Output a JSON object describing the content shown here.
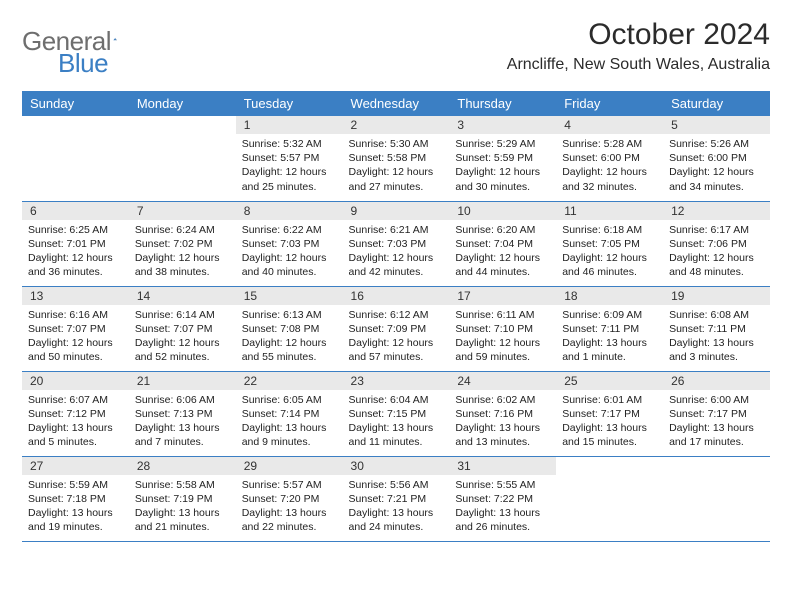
{
  "logo": {
    "text1": "General",
    "text2": "Blue"
  },
  "title": "October 2024",
  "location": "Arncliffe, New South Wales, Australia",
  "colors": {
    "header_bg": "#3b7fc4",
    "daynum_bg": "#e9e9e9",
    "border": "#3b7fc4"
  },
  "weekdays": [
    "Sunday",
    "Monday",
    "Tuesday",
    "Wednesday",
    "Thursday",
    "Friday",
    "Saturday"
  ],
  "weeks": [
    [
      null,
      null,
      {
        "n": "1",
        "sr": "5:32 AM",
        "ss": "5:57 PM",
        "dl": "12 hours and 25 minutes."
      },
      {
        "n": "2",
        "sr": "5:30 AM",
        "ss": "5:58 PM",
        "dl": "12 hours and 27 minutes."
      },
      {
        "n": "3",
        "sr": "5:29 AM",
        "ss": "5:59 PM",
        "dl": "12 hours and 30 minutes."
      },
      {
        "n": "4",
        "sr": "5:28 AM",
        "ss": "6:00 PM",
        "dl": "12 hours and 32 minutes."
      },
      {
        "n": "5",
        "sr": "5:26 AM",
        "ss": "6:00 PM",
        "dl": "12 hours and 34 minutes."
      }
    ],
    [
      {
        "n": "6",
        "sr": "6:25 AM",
        "ss": "7:01 PM",
        "dl": "12 hours and 36 minutes."
      },
      {
        "n": "7",
        "sr": "6:24 AM",
        "ss": "7:02 PM",
        "dl": "12 hours and 38 minutes."
      },
      {
        "n": "8",
        "sr": "6:22 AM",
        "ss": "7:03 PM",
        "dl": "12 hours and 40 minutes."
      },
      {
        "n": "9",
        "sr": "6:21 AM",
        "ss": "7:03 PM",
        "dl": "12 hours and 42 minutes."
      },
      {
        "n": "10",
        "sr": "6:20 AM",
        "ss": "7:04 PM",
        "dl": "12 hours and 44 minutes."
      },
      {
        "n": "11",
        "sr": "6:18 AM",
        "ss": "7:05 PM",
        "dl": "12 hours and 46 minutes."
      },
      {
        "n": "12",
        "sr": "6:17 AM",
        "ss": "7:06 PM",
        "dl": "12 hours and 48 minutes."
      }
    ],
    [
      {
        "n": "13",
        "sr": "6:16 AM",
        "ss": "7:07 PM",
        "dl": "12 hours and 50 minutes."
      },
      {
        "n": "14",
        "sr": "6:14 AM",
        "ss": "7:07 PM",
        "dl": "12 hours and 52 minutes."
      },
      {
        "n": "15",
        "sr": "6:13 AM",
        "ss": "7:08 PM",
        "dl": "12 hours and 55 minutes."
      },
      {
        "n": "16",
        "sr": "6:12 AM",
        "ss": "7:09 PM",
        "dl": "12 hours and 57 minutes."
      },
      {
        "n": "17",
        "sr": "6:11 AM",
        "ss": "7:10 PM",
        "dl": "12 hours and 59 minutes."
      },
      {
        "n": "18",
        "sr": "6:09 AM",
        "ss": "7:11 PM",
        "dl": "13 hours and 1 minute."
      },
      {
        "n": "19",
        "sr": "6:08 AM",
        "ss": "7:11 PM",
        "dl": "13 hours and 3 minutes."
      }
    ],
    [
      {
        "n": "20",
        "sr": "6:07 AM",
        "ss": "7:12 PM",
        "dl": "13 hours and 5 minutes."
      },
      {
        "n": "21",
        "sr": "6:06 AM",
        "ss": "7:13 PM",
        "dl": "13 hours and 7 minutes."
      },
      {
        "n": "22",
        "sr": "6:05 AM",
        "ss": "7:14 PM",
        "dl": "13 hours and 9 minutes."
      },
      {
        "n": "23",
        "sr": "6:04 AM",
        "ss": "7:15 PM",
        "dl": "13 hours and 11 minutes."
      },
      {
        "n": "24",
        "sr": "6:02 AM",
        "ss": "7:16 PM",
        "dl": "13 hours and 13 minutes."
      },
      {
        "n": "25",
        "sr": "6:01 AM",
        "ss": "7:17 PM",
        "dl": "13 hours and 15 minutes."
      },
      {
        "n": "26",
        "sr": "6:00 AM",
        "ss": "7:17 PM",
        "dl": "13 hours and 17 minutes."
      }
    ],
    [
      {
        "n": "27",
        "sr": "5:59 AM",
        "ss": "7:18 PM",
        "dl": "13 hours and 19 minutes."
      },
      {
        "n": "28",
        "sr": "5:58 AM",
        "ss": "7:19 PM",
        "dl": "13 hours and 21 minutes."
      },
      {
        "n": "29",
        "sr": "5:57 AM",
        "ss": "7:20 PM",
        "dl": "13 hours and 22 minutes."
      },
      {
        "n": "30",
        "sr": "5:56 AM",
        "ss": "7:21 PM",
        "dl": "13 hours and 24 minutes."
      },
      {
        "n": "31",
        "sr": "5:55 AM",
        "ss": "7:22 PM",
        "dl": "13 hours and 26 minutes."
      },
      null,
      null
    ]
  ],
  "labels": {
    "sunrise": "Sunrise:",
    "sunset": "Sunset:",
    "daylight": "Daylight:"
  }
}
